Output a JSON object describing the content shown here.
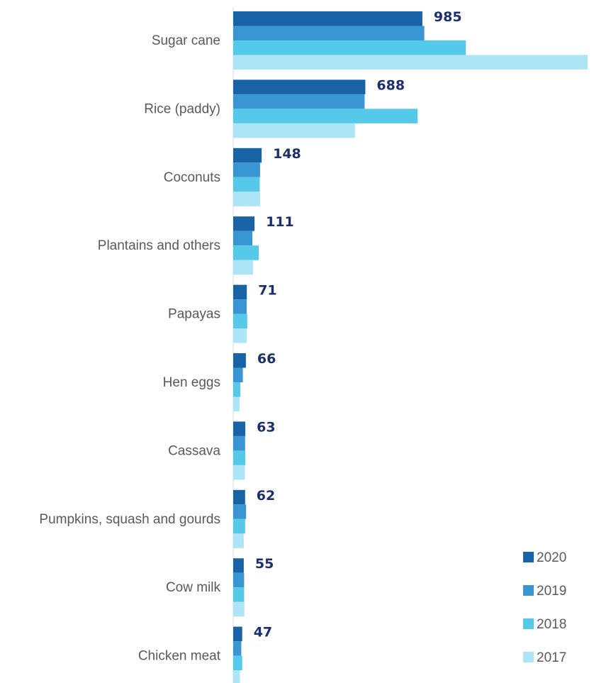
{
  "chart_data": {
    "type": "bar",
    "orientation": "horizontal",
    "categories": [
      "Sugar cane",
      "Rice (paddy)",
      "Coconuts",
      "Plantains and others",
      "Papayas",
      "Hen eggs",
      "Cassava",
      "Pumpkins, squash and gourds",
      "Cow milk",
      "Chicken meat"
    ],
    "series": [
      {
        "name": "2020",
        "color": "#1763a6",
        "values": [
          985,
          688,
          148,
          111,
          71,
          66,
          63,
          62,
          55,
          47
        ]
      },
      {
        "name": "2019",
        "color": "#3a96d3",
        "values": [
          995,
          684,
          140,
          100,
          70,
          50,
          62,
          67,
          57,
          42
        ]
      },
      {
        "name": "2018",
        "color": "#55c9ea",
        "values": [
          1211,
          960,
          138,
          133,
          73,
          37,
          63,
          62,
          57,
          47
        ]
      },
      {
        "name": "2017",
        "color": "#aee5f6",
        "values": [
          1845,
          634,
          140,
          103,
          71,
          33,
          60,
          55,
          58,
          35
        ]
      }
    ],
    "data_labels": [
      "985",
      "688",
      "148",
      "111",
      "71",
      "66",
      "63",
      "62",
      "55",
      "47"
    ],
    "legend": {
      "position": "bottom-right",
      "order": [
        "2020",
        "2019",
        "2018",
        "2017"
      ]
    },
    "xlim": [
      0,
      1845
    ],
    "title": "",
    "xlabel": "",
    "ylabel": "",
    "grid": false
  }
}
